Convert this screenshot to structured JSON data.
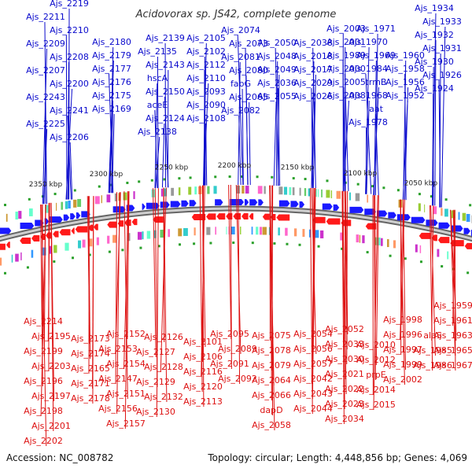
{
  "title": "Acidovorax sp. JS42, complete genome",
  "footer": {
    "accession": "Accession: NC_008782",
    "stats": "Topology: circular; Length: 4,448,856 bp; Genes: 4,069"
  },
  "colors": {
    "forward": "#0a0acc",
    "reverse": "#dd1111",
    "forward_arrow": "#1a1aff",
    "reverse_arrow": "#ff1a1a",
    "backbone": "#888888",
    "tick": "#2aa02a"
  },
  "scale_labels": [
    "2350 kbp",
    "2300 kbp",
    "2250 kbp",
    "2200 kbp",
    "2150 kbp",
    "2100 kbp",
    "2050 kbp"
  ],
  "forward_genes": [
    "Ajs_2219",
    "Ajs_2211",
    "Ajs_2210",
    "Ajs_2209",
    "Ajs_2208",
    "Ajs_2207",
    "Ajs_2200",
    "Ajs_2243",
    "Ajs_2241",
    "Ajs_2225",
    "Ajs_2206",
    "Ajs_2180",
    "Ajs_2179",
    "Ajs_2177",
    "Ajs_2176",
    "Ajs_2175",
    "Ajs_2169",
    "Ajs_2139",
    "Ajs_2135",
    "Ajs_2143",
    "hscA",
    "Ajs_2150",
    "aceE",
    "Ajs_2124",
    "Ajs_2138",
    "Ajs_2105",
    "Ajs_2102",
    "Ajs_2112",
    "Ajs_2110",
    "Ajs_2093",
    "Ajs_2090",
    "Ajs_2108",
    "Ajs_2074",
    "Ajs_2073",
    "Ajs_2081",
    "Ajs_2080",
    "fabG",
    "Ajs_2065",
    "Ajs_2082",
    "Ajs_2050",
    "Ajs_2048",
    "Ajs_2049",
    "Ajs_2036",
    "Ajs_2055",
    "Ajs_2038",
    "Ajs_2018",
    "Ajs_2017",
    "Ajs_2029",
    "Ajs_2026",
    "Ajs_2003",
    "Ajs_2001",
    "Ajs_1989",
    "Ajs_2000",
    "Ajs_2005",
    "Ajs_2008",
    "Ajs_1971",
    "Ajs_1970",
    "Ajs_1969",
    "Ajs_1984",
    "trmB",
    "Ajs_1968",
    "aat",
    "Ajs_1978",
    "Ajs_1960",
    "Ajs_1958",
    "Ajs_1956",
    "Ajs_1952",
    "Ajs_1934",
    "Ajs_1933",
    "Ajs_1932",
    "Ajs_1931",
    "Ajs_1930",
    "Ajs_1926",
    "Ajs_1924"
  ],
  "reverse_genes": [
    "Ajs_2214",
    "Ajs_2195",
    "Ajs_2199",
    "Ajs_2203",
    "Ajs_2196",
    "Ajs_2197",
    "Ajs_2198",
    "Ajs_2201",
    "Ajs_2202",
    "Ajs_2173",
    "Ajs_2174",
    "Ajs_2165",
    "Ajs_2171",
    "Ajs_2178",
    "Ajs_2152",
    "Ajs_2153",
    "Ajs_2154",
    "Ajs_2147",
    "Ajs_2151",
    "Ajs_2156",
    "Ajs_2157",
    "Ajs_2126",
    "Ajs_2127",
    "Ajs_2128",
    "Ajs_2129",
    "Ajs_2132",
    "Ajs_2130",
    "Ajs_2101",
    "Ajs_2106",
    "Ajs_2116",
    "Ajs_2120",
    "Ajs_2113",
    "Ajs_2095",
    "Ajs_2089",
    "Ajs_2091",
    "Ajs_2092",
    "Ajs_2075",
    "Ajs_2078",
    "Ajs_2079",
    "Ajs_2064",
    "Ajs_2066",
    "dapD",
    "Ajs_2058",
    "Ajs_2054",
    "Ajs_2056",
    "Ajs_2057",
    "Ajs_2042",
    "Ajs_2043",
    "Ajs_2044",
    "Ajs_2052",
    "Ajs_2033",
    "Ajs_2030",
    "Ajs_2021",
    "Ajs_2022",
    "Ajs_2023",
    "Ajs_2034",
    "Ajs_2010",
    "Ajs_2012",
    "prpE",
    "Ajs_2014",
    "Ajs_2015",
    "Ajs_1998",
    "Ajs_1996",
    "Ajs_1997",
    "Ajs_1999",
    "Ajs_2002",
    "alaS",
    "Ajs_1985",
    "Ajs_1986",
    "Ajs_1959",
    "Ajs_1961",
    "Ajs_1963",
    "Ajs_1965",
    "Ajs_1967"
  ]
}
